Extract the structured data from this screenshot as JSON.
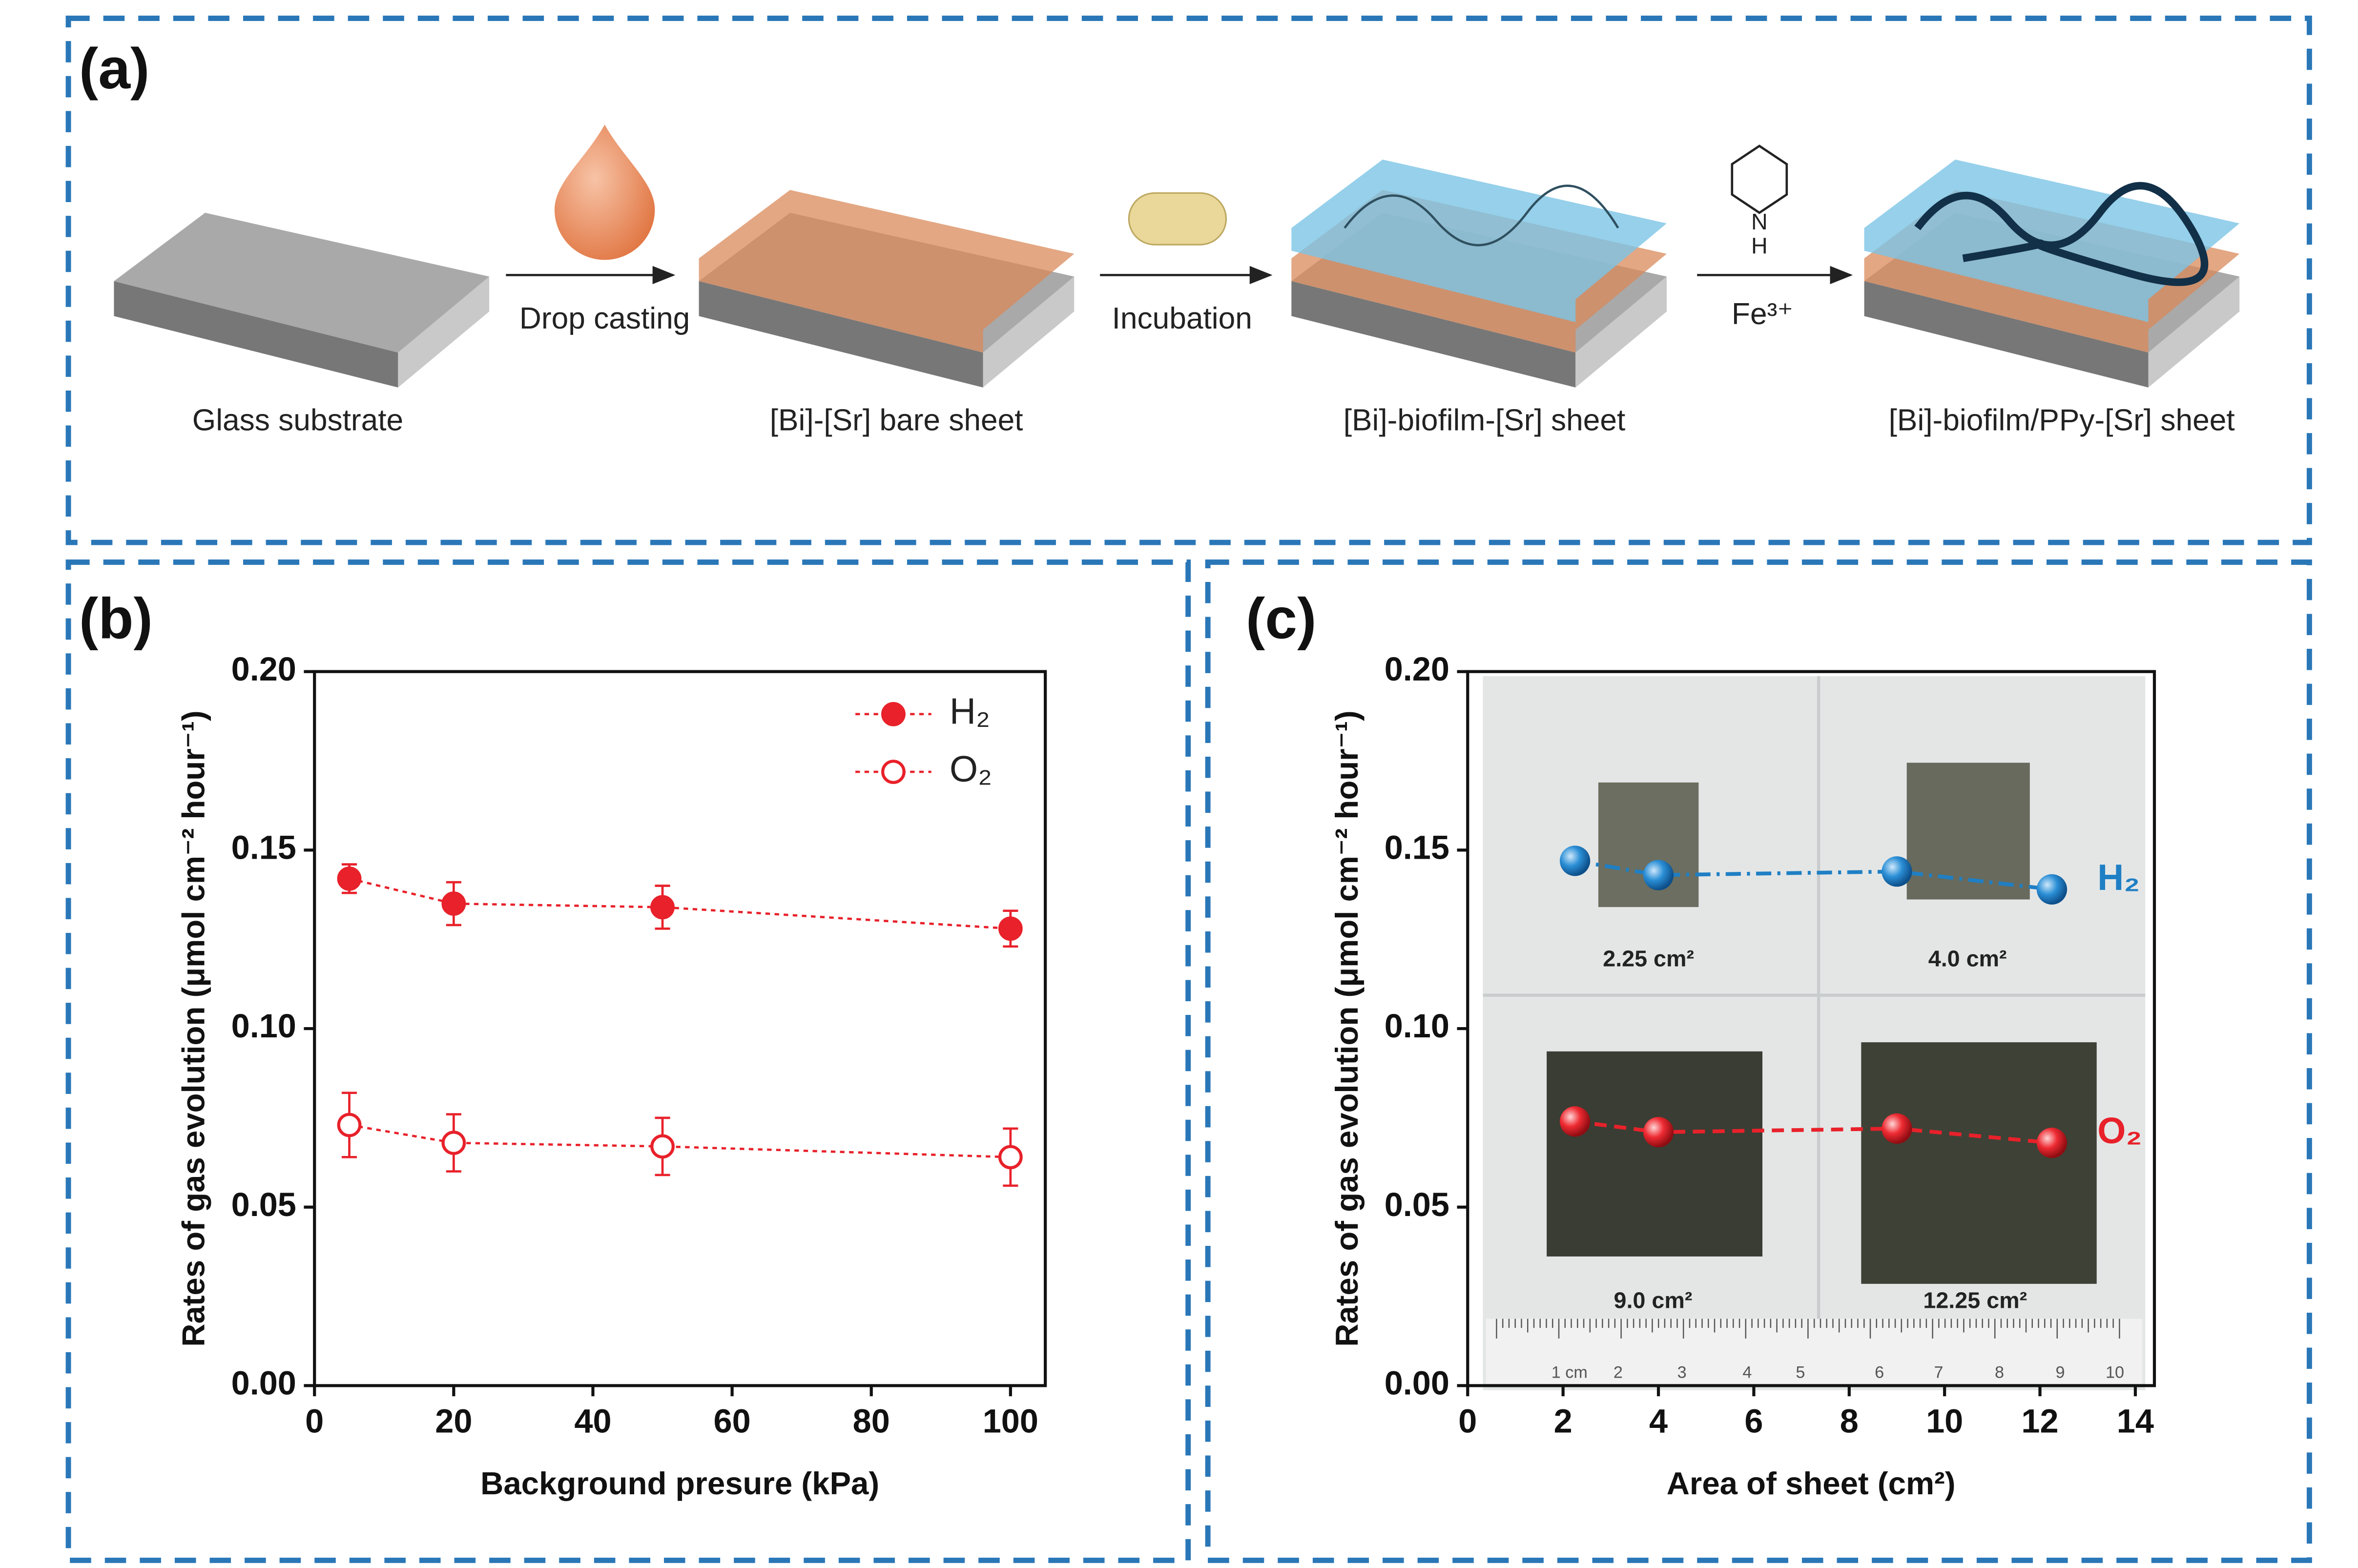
{
  "panel_a": {
    "label": "(a)",
    "steps": [
      "Glass substrate",
      "[Bi]-[Sr] bare sheet",
      "[Bi]-biofilm-[Sr] sheet",
      "[Bi]-biofilm/PPy-[Sr] sheet"
    ],
    "arrows": [
      "Drop casting",
      "Incubation",
      "Fe³⁺"
    ],
    "pyrrole_atoms": [
      "N",
      "H"
    ]
  },
  "chart_data": [
    {
      "type": "line",
      "label": "(b)",
      "xlabel": "Background presure (kPa)",
      "ylabel": "Rates of gas evolution (μmol cm⁻² hour⁻¹)",
      "x": [
        5,
        20,
        50,
        100
      ],
      "xlim": [
        0,
        105
      ],
      "xticks": [
        0,
        20,
        40,
        60,
        80,
        100
      ],
      "ylim": [
        0,
        0.2
      ],
      "yticks": [
        {
          "value": 0,
          "label": "0.00"
        },
        0.05,
        {
          "value": 0.1,
          "label": "0.10"
        },
        0.15,
        {
          "value": 0.2,
          "label": "0.20"
        }
      ],
      "legend": "upper right",
      "series": [
        {
          "name": "H₂",
          "color": "#e8212a",
          "marker": "filled",
          "linestyle": "dotted",
          "values": [
            0.142,
            0.135,
            0.134,
            0.128
          ],
          "errors": [
            0.004,
            0.006,
            0.006,
            0.005
          ]
        },
        {
          "name": "O₂",
          "color": "#e8212a",
          "marker": "open",
          "linestyle": "dotted",
          "values": [
            0.073,
            0.068,
            0.067,
            0.064
          ],
          "errors": [
            0.009,
            0.008,
            0.008,
            0.008
          ]
        }
      ]
    },
    {
      "type": "line",
      "label": "(c)",
      "xlabel": "Area of sheet (cm²)",
      "ylabel": "Rates of gas evolution (μmol cm⁻² hour⁻¹)",
      "x": [
        2.25,
        4,
        9,
        12.25
      ],
      "xlim": [
        0,
        14.4
      ],
      "xticks": [
        0,
        2,
        4,
        6,
        8,
        10,
        12,
        14
      ],
      "ylim": [
        0,
        0.2
      ],
      "yticks": [
        {
          "value": 0,
          "label": "0.00"
        },
        0.05,
        {
          "value": 0.1,
          "label": "0.10"
        },
        0.15,
        {
          "value": 0.2,
          "label": "0.20"
        }
      ],
      "legend": "inline",
      "photo": {
        "sheet_labels": [
          "2.25 cm²",
          "4.0 cm²",
          "9.0 cm²",
          "12.25 cm²"
        ],
        "ruler_labels": [
          "1 cm",
          "2",
          "3",
          "4",
          "5",
          "6",
          "7",
          "8",
          "9",
          "10"
        ]
      },
      "series": [
        {
          "name": "H₂",
          "color": "#1f7fc4",
          "marker": "sphere",
          "linestyle": "dashdot",
          "values": [
            0.147,
            0.143,
            0.144,
            0.139
          ]
        },
        {
          "name": "O₂",
          "color": "#e8212a",
          "marker": "sphere",
          "linestyle": "dashed",
          "values": [
            0.074,
            0.071,
            0.072,
            0.068
          ]
        }
      ]
    }
  ]
}
